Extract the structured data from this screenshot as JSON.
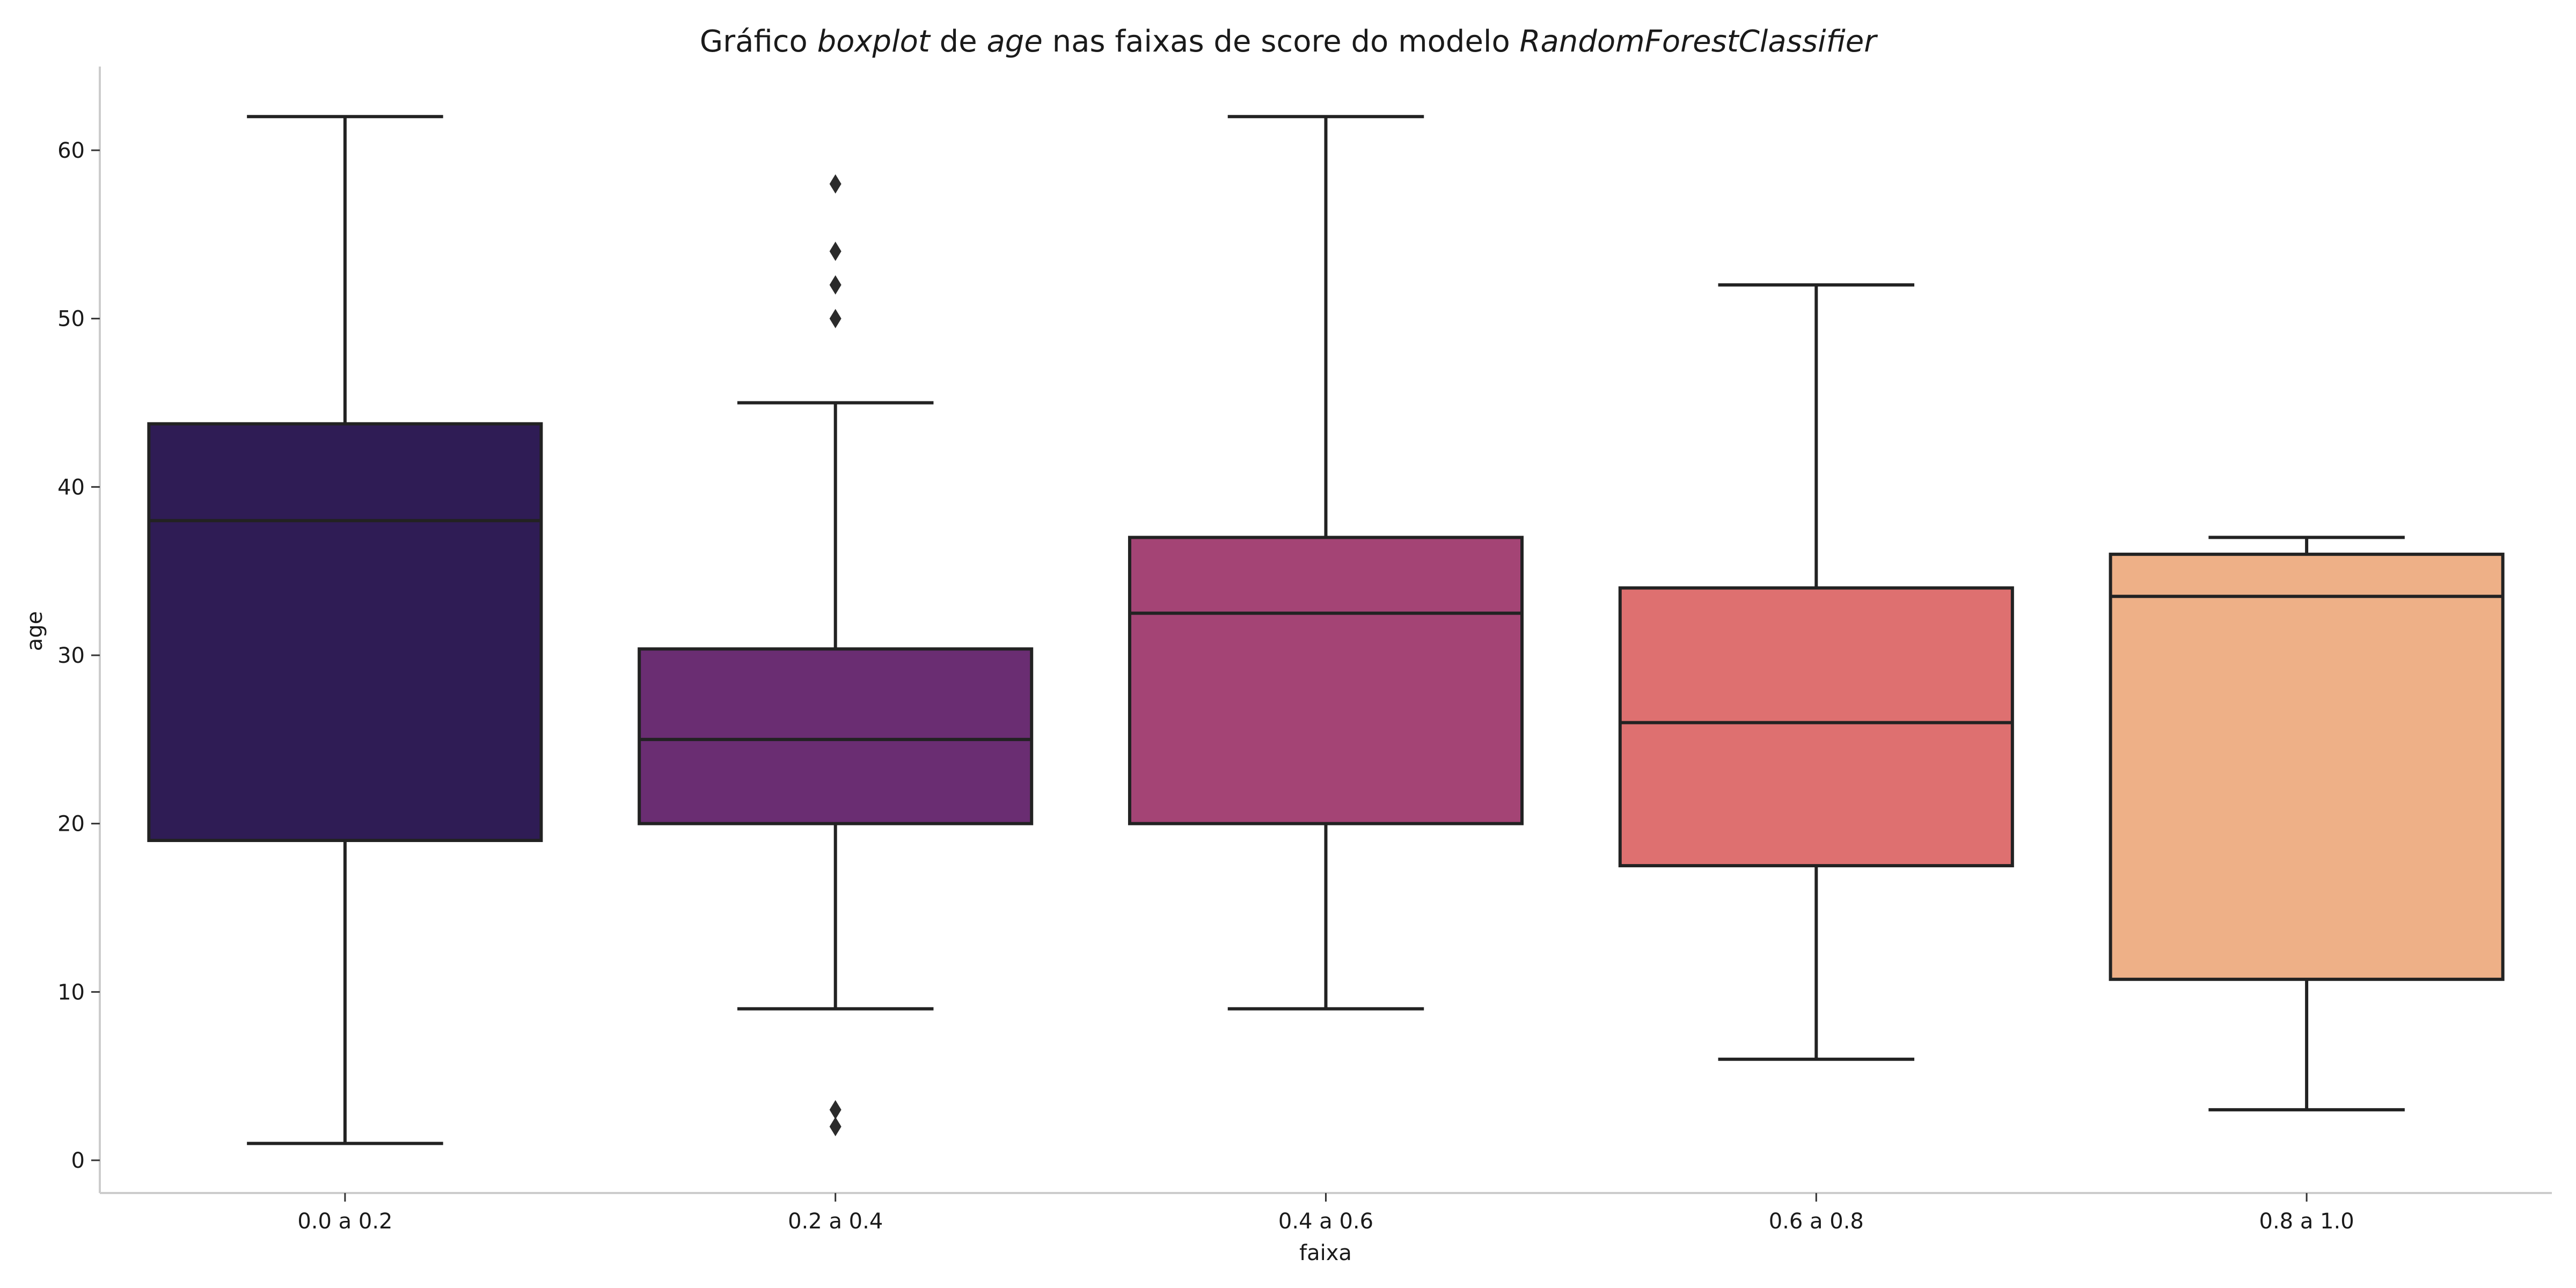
{
  "chart_data": {
    "type": "box",
    "title": {
      "parts": [
        {
          "text": "Gráfico ",
          "italic": false
        },
        {
          "text": "boxplot",
          "italic": true
        },
        {
          "text": " de ",
          "italic": false
        },
        {
          "text": "age",
          "italic": true
        },
        {
          "text": " nas faixas de score do modelo ",
          "italic": false
        },
        {
          "text": "RandomForestClassifier",
          "italic": true
        }
      ]
    },
    "xlabel": "faixa",
    "ylabel": "age",
    "ylim": [
      -2,
      65
    ],
    "yticks": [
      0,
      10,
      20,
      30,
      40,
      50,
      60
    ],
    "grid": false,
    "categories": [
      "0.0 a 0.2",
      "0.2 a 0.4",
      "0.4 a 0.6",
      "0.6 a 0.8",
      "0.8 a 1.0"
    ],
    "boxes": [
      {
        "category": "0.0 a 0.2",
        "whisker_low": 1,
        "q1": 19,
        "median": 38,
        "q3": 43.75,
        "whisker_high": 62,
        "outliers": [],
        "color": "#2f1c55"
      },
      {
        "category": "0.2 a 0.4",
        "whisker_low": 9,
        "q1": 20,
        "median": 25,
        "q3": 30.375,
        "whisker_high": 45,
        "outliers": [
          2,
          3,
          50,
          52,
          54,
          58
        ],
        "color": "#6a2d72"
      },
      {
        "category": "0.4 a 0.6",
        "whisker_low": 9,
        "q1": 20,
        "median": 32.5,
        "q3": 37,
        "whisker_high": 62,
        "outliers": [],
        "color": "#a44475"
      },
      {
        "category": "0.6 a 0.8",
        "whisker_low": 6,
        "q1": 17.5,
        "median": 26,
        "q3": 34,
        "whisker_high": 52,
        "outliers": [],
        "color": "#de7070"
      },
      {
        "category": "0.8 a 1.0",
        "whisker_low": 3,
        "q1": 10.75,
        "median": 33.5,
        "q3": 36,
        "whisker_high": 37,
        "outliers": [],
        "color": "#eeb087"
      }
    ]
  }
}
